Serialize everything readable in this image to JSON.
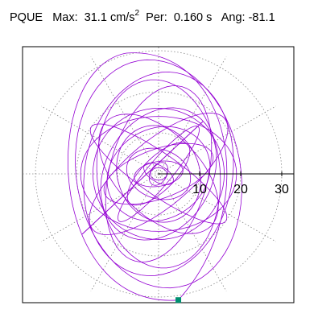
{
  "header": {
    "station": "PQUE",
    "max_label": "Max:",
    "max_value": "31.1",
    "max_unit": "cm/s",
    "max_unit_exp": "2",
    "per_label": "Per:",
    "per_value": "0.160 s",
    "ang_label": "Ang:",
    "ang_value": "-81.1"
  },
  "chart_data": {
    "type": "scatter",
    "description_kind": "polar hodogram",
    "rlim": [
      0,
      33
    ],
    "radial_ticks": [
      10,
      20,
      30
    ],
    "grid": "dotted circles and spokes every 30 deg",
    "trace_color": "#9400d3",
    "marker_color": "#009070",
    "max_point": {
      "r": 31.1,
      "angle_deg": -81.1
    },
    "loops": [
      {
        "a": 19,
        "b": 14,
        "rot": 0
      },
      {
        "a": 21,
        "b": 8,
        "rot": 40
      },
      {
        "a": 18,
        "b": 10,
        "rot": -45
      },
      {
        "a": 16,
        "b": 16,
        "rot": 0
      },
      {
        "a": 22,
        "b": 12,
        "rot": 75
      },
      {
        "a": 14,
        "b": 6,
        "rot": 20
      },
      {
        "a": 20,
        "b": 5,
        "rot": -35
      },
      {
        "a": 17,
        "b": 13,
        "rot": 60
      },
      {
        "a": 12,
        "b": 10,
        "rot": -70
      },
      {
        "a": 23,
        "b": 15,
        "rot": 95
      },
      {
        "a": 10,
        "b": 4,
        "rot": 45
      },
      {
        "a": 8,
        "b": 6,
        "rot": -20
      },
      {
        "a": 15,
        "b": 3,
        "rot": 50
      },
      {
        "a": 13,
        "b": 11,
        "rot": 30
      },
      {
        "a": 25,
        "b": 18,
        "rot": 80
      },
      {
        "a": 28,
        "b": 20,
        "rot": 100
      },
      {
        "a": 6,
        "b": 3,
        "rot": 10
      },
      {
        "a": 4,
        "b": 2,
        "rot": -30
      },
      {
        "a": 3,
        "b": 2,
        "rot": 60
      },
      {
        "a": 2,
        "b": 1.5,
        "rot": 0
      }
    ]
  }
}
